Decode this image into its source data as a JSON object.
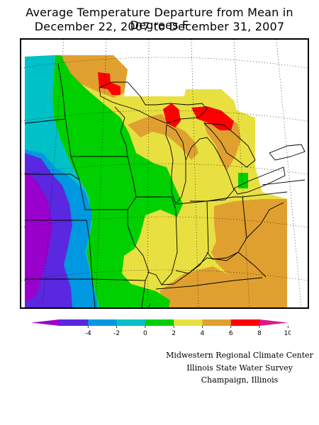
{
  "title_line1": "Average Temperature Departure from Mean in Degrees F",
  "title_line2": "December 22, 2007 to December 31, 2007",
  "legend": {
    "ticks": [
      "-4",
      "-2",
      "0",
      "2",
      "4",
      "6",
      "8",
      "10"
    ],
    "colors": [
      "#9900cc",
      "#5a28e0",
      "#0098e0",
      "#00c0c8",
      "#00d000",
      "#e8e040",
      "#e0a030",
      "#ff0000",
      "#e01888"
    ]
  },
  "credits": {
    "line1": "Midwestern Regional Climate Center",
    "line2": "Illinois State Water Survey",
    "line3": "Champaign, Illinois"
  }
}
